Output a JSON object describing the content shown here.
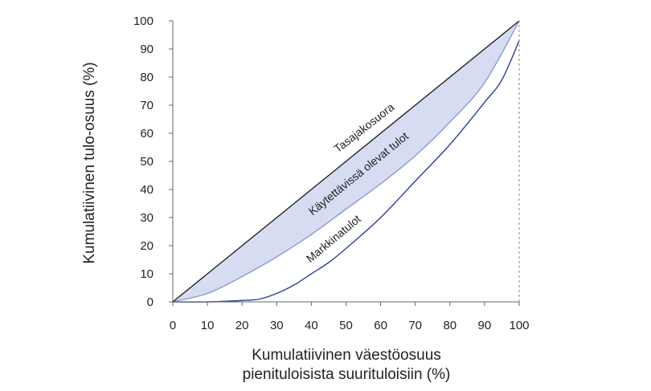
{
  "chart_data": {
    "type": "line",
    "xlabel_line1": "Kumulatiivinen väestöosuus",
    "xlabel_line2": "pienituloisista suurituloisiin (%)",
    "ylabel": "Kumulatiivinen tulo-osuus (%)",
    "xlim": [
      0,
      100
    ],
    "ylim": [
      0,
      100
    ],
    "x_ticks": [
      0,
      10,
      20,
      30,
      40,
      50,
      60,
      70,
      80,
      90,
      100
    ],
    "y_ticks": [
      0,
      10,
      20,
      30,
      40,
      50,
      60,
      70,
      80,
      90,
      100
    ],
    "grid": false,
    "x_tick_labels": [
      "0",
      "10",
      "20",
      "30",
      "40",
      "50",
      "60",
      "70",
      "80",
      "90",
      "100"
    ],
    "y_tick_labels": [
      "0",
      "10",
      "20",
      "30",
      "40",
      "50",
      "60",
      "70",
      "80",
      "90",
      "100"
    ],
    "shaded_between": [
      "Tasajakosuora",
      "Käytettävissä olevat tulot"
    ],
    "colors": {
      "equality_line": "#1a1a1a",
      "disposable_line": "#8a9ad4",
      "market_line": "#2b3f99",
      "shade_fill": "#d6dcf1",
      "axis": "#666666",
      "guide": "#888888"
    },
    "series": [
      {
        "name": "Tasajakosuora",
        "x": [
          0,
          100
        ],
        "y": [
          0,
          100
        ]
      },
      {
        "name": "Käytettävissä olevat tulot",
        "x": [
          0,
          10,
          20,
          30,
          40,
          50,
          60,
          70,
          80,
          90,
          100
        ],
        "y": [
          0,
          3,
          9,
          16,
          24,
          33,
          42,
          52,
          64,
          78,
          100
        ]
      },
      {
        "name": "Markkinatulot",
        "x": [
          0,
          10,
          20,
          25,
          30,
          35,
          40,
          45,
          50,
          60,
          70,
          80,
          90,
          95,
          100
        ],
        "y": [
          0,
          0,
          0.5,
          1,
          3,
          6,
          10,
          14,
          19,
          30,
          43,
          56,
          71,
          79,
          93
        ]
      }
    ]
  }
}
